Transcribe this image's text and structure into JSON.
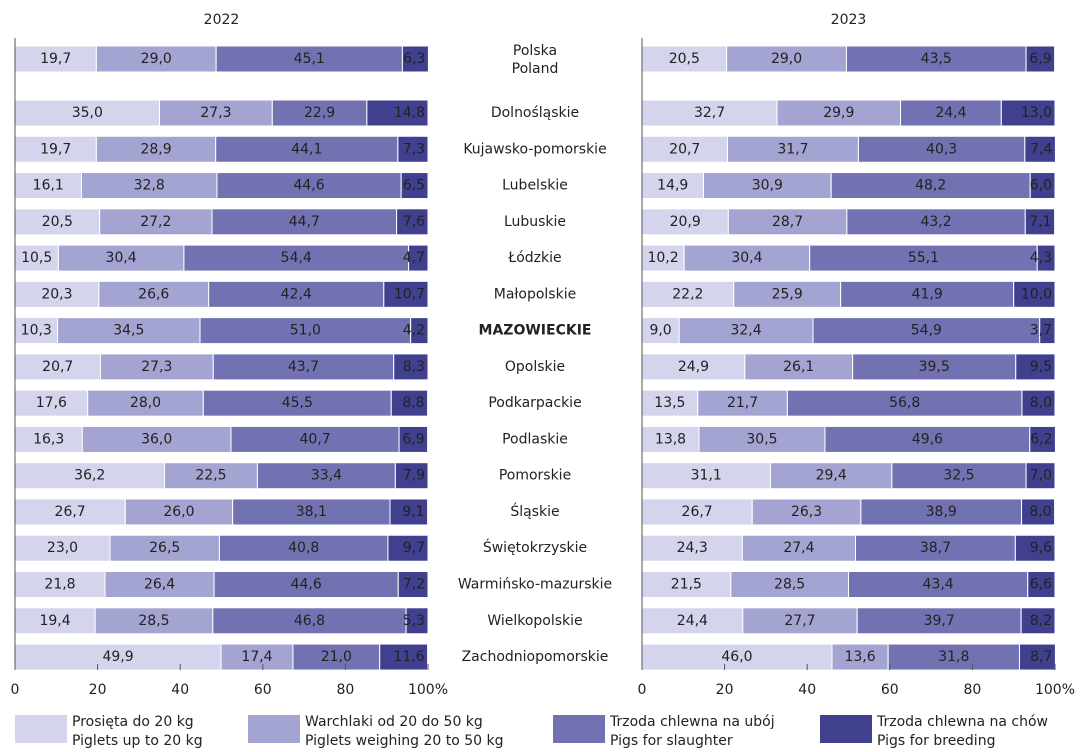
{
  "chart_data": {
    "type": "bar",
    "orientation": "horizontal",
    "stacked": true,
    "categories": [
      "Polska",
      "Dolnośląskie",
      "Kujawsko-pomorskie",
      "Lubelskie",
      "Lubuskie",
      "Łódzkie",
      "Małopolskie",
      "MAZOWIECKIE",
      "Opolskie",
      "Podkarpackie",
      "Podlaskie",
      "Pomorskie",
      "Śląskie",
      "Świętokrzyskie",
      "Warmińsko-mazurskie",
      "Wielkopolskie",
      "Zachodniopomorskie"
    ],
    "first_category_translation": "Poland",
    "bold_category_index": 7,
    "series": [
      {
        "name": "Prosięta do 20 kg",
        "name_en": "Piglets up to 20 kg",
        "color": "#d4d4ec"
      },
      {
        "name": "Warchlaki od 20 do 50 kg",
        "name_en": "Piglets weighing 20 to 50 kg",
        "color": "#a4a4d2"
      },
      {
        "name": "Trzoda chlewna na ubój",
        "name_en": "Pigs for slaughter",
        "color": "#7272b2"
      },
      {
        "name": "Trzoda chlewna na chów",
        "name_en": "Pigs for breeding",
        "color": "#40408f"
      }
    ],
    "xlim": [
      0,
      100
    ],
    "xticks": [
      0,
      20,
      40,
      60,
      80,
      {
        "value": 100,
        "label": "100%"
      }
    ],
    "panels": [
      {
        "title": "2022",
        "values": [
          [
            19.7,
            35.0,
            19.7,
            16.1,
            20.5,
            10.5,
            20.3,
            10.3,
            20.7,
            17.6,
            16.3,
            36.2,
            26.7,
            23.0,
            21.8,
            19.4,
            49.9
          ],
          [
            29.0,
            27.3,
            28.9,
            32.8,
            27.2,
            30.4,
            26.6,
            34.5,
            27.3,
            28.0,
            36.0,
            22.5,
            26.0,
            26.5,
            26.4,
            28.5,
            17.4
          ],
          [
            45.1,
            22.9,
            44.1,
            44.6,
            44.7,
            54.4,
            42.4,
            51.0,
            43.7,
            45.5,
            40.7,
            33.4,
            38.1,
            40.8,
            44.6,
            46.8,
            21.0
          ],
          [
            6.3,
            14.8,
            7.3,
            6.5,
            7.6,
            4.7,
            10.7,
            4.2,
            8.3,
            8.8,
            6.9,
            7.9,
            9.1,
            9.7,
            7.2,
            5.3,
            11.6
          ]
        ],
        "value_labels": [
          [
            "19,7",
            "35,0",
            "19,7",
            "16,1",
            "20,5",
            "10,5",
            "20,3",
            "10,3",
            "20,7",
            "17,6",
            "16,3",
            "36,2",
            "26,7",
            "23,0",
            "21,8",
            "19,4",
            "49,9"
          ],
          [
            "29,0",
            "27,3",
            "28,9",
            "32,8",
            "27,2",
            "30,4",
            "26,6",
            "34,5",
            "27,3",
            "28,0",
            "36,0",
            "22,5",
            "26,0",
            "26,5",
            "26,4",
            "28,5",
            "17,4"
          ],
          [
            "45,1",
            "22,9",
            "44,1",
            "44,6",
            "44,7",
            "54,4",
            "42,4",
            "51,0",
            "43,7",
            "45,5",
            "40,7",
            "33,4",
            "38,1",
            "40,8",
            "44,6",
            "46,8",
            "21,0"
          ],
          [
            "6,3",
            "14,8",
            "7,3",
            "6,5",
            "7,6",
            "4,7",
            "10,7",
            "4,2",
            "8,3",
            "8,8",
            "6,9",
            "7,9",
            "9,1",
            "9,7",
            "7,2",
            "5,3",
            "11,6"
          ]
        ]
      },
      {
        "title": "2023",
        "values": [
          [
            20.5,
            32.7,
            20.7,
            14.9,
            20.9,
            10.2,
            22.2,
            9.0,
            24.9,
            13.5,
            13.8,
            31.1,
            26.7,
            24.3,
            21.5,
            24.4,
            46.0
          ],
          [
            29.0,
            29.9,
            31.7,
            30.9,
            28.7,
            30.4,
            25.9,
            32.4,
            26.1,
            21.7,
            30.5,
            29.4,
            26.3,
            27.4,
            28.5,
            27.7,
            13.6
          ],
          [
            43.5,
            24.4,
            40.3,
            48.2,
            43.2,
            55.1,
            41.9,
            54.9,
            39.5,
            56.8,
            49.6,
            32.5,
            38.9,
            38.7,
            43.4,
            39.7,
            31.8
          ],
          [
            6.9,
            13.0,
            7.4,
            6.0,
            7.1,
            4.3,
            10.0,
            3.7,
            9.5,
            8.0,
            6.2,
            7.0,
            8.0,
            9.6,
            6.6,
            8.2,
            8.7
          ]
        ],
        "value_labels": [
          [
            "20,5",
            "32,7",
            "20,7",
            "14,9",
            "20,9",
            "10,2",
            "22,2",
            "9,0",
            "24,9",
            "13,5",
            "13,8",
            "31,1",
            "26,7",
            "24,3",
            "21,5",
            "24,4",
            "46,0"
          ],
          [
            "29,0",
            "29,9",
            "31,7",
            "30,9",
            "28,7",
            "30,4",
            "25,9",
            "32,4",
            "26,1",
            "21,7",
            "30,5",
            "29,4",
            "26,3",
            "27,4",
            "28,5",
            "27,7",
            "13,6"
          ],
          [
            "43,5",
            "24,4",
            "40,3",
            "48,2",
            "43,2",
            "55,1",
            "41,9",
            "54,9",
            "39,5",
            "56,8",
            "49,6",
            "32,5",
            "38,9",
            "38,7",
            "43,4",
            "39,7",
            "31,8"
          ],
          [
            "6,9",
            "13,0",
            "7,4",
            "6,0",
            "7,1",
            "4,3",
            "10,0",
            "3,7",
            "9,5",
            "8,0",
            "6,2",
            "7,0",
            "8,0",
            "9,6",
            "6,6",
            "8,2",
            "8,7"
          ]
        ]
      }
    ]
  }
}
